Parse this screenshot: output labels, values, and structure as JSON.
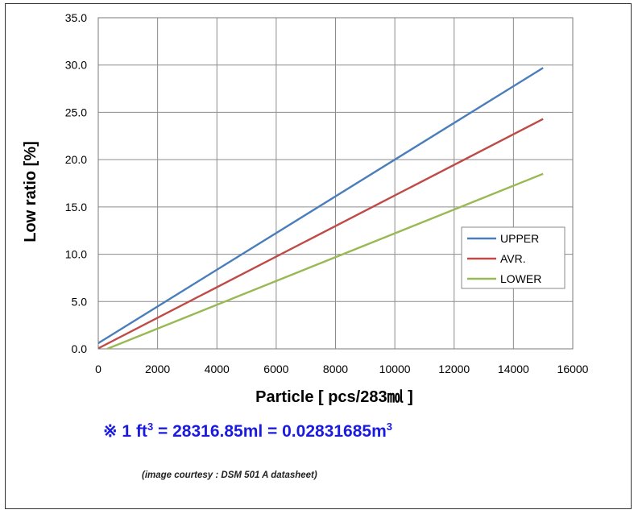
{
  "chart_data": {
    "type": "line",
    "title": "",
    "xlabel": "Particle [ pcs/283㏖ ]",
    "ylabel": "Low ratio [%]",
    "xlim": [
      0,
      16000
    ],
    "ylim": [
      0,
      35
    ],
    "x_ticks": [
      "0",
      "2000",
      "4000",
      "6000",
      "8000",
      "10000",
      "12000",
      "14000",
      "16000"
    ],
    "y_ticks": [
      "0.0",
      "5.0",
      "10.0",
      "15.0",
      "20.0",
      "25.0",
      "30.0",
      "35.0"
    ],
    "grid": true,
    "legend_position": "right",
    "series": [
      {
        "name": "UPPER",
        "color": "#4a7ebb",
        "x": [
          0,
          15000
        ],
        "y": [
          0.6,
          29.7
        ]
      },
      {
        "name": "AVR.",
        "color": "#be4b48",
        "x": [
          0,
          15000
        ],
        "y": [
          0.05,
          24.3
        ]
      },
      {
        "name": "LOWER",
        "color": "#98b954",
        "x": [
          300,
          15000
        ],
        "y": [
          0.0,
          18.5
        ]
      }
    ]
  },
  "note": {
    "prefix": "※ 1 ft",
    "sup1": "3",
    "middle": " = 28316.85ml = 0.02831685m",
    "sup2": "3"
  },
  "courtesy": "(image courtesy : DSM 501 A datasheet)"
}
